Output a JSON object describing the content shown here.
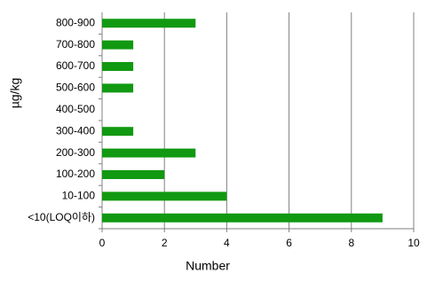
{
  "chart_data": {
    "type": "bar",
    "orientation": "horizontal",
    "x_label": "Number",
    "y_label": "µg/kg",
    "categories": [
      "<10(LOQ이하)",
      "10-100",
      "100-200",
      "200-300",
      "300-400",
      "400-500",
      "500-600",
      "600-700",
      "700-800",
      "800-900"
    ],
    "values": [
      9,
      4,
      2,
      3,
      1,
      0,
      1,
      1,
      1,
      3
    ],
    "color": "#119911",
    "xlim": [
      0,
      10
    ],
    "xticks": [
      0,
      2,
      4,
      6,
      8,
      10
    ],
    "grid": true
  }
}
